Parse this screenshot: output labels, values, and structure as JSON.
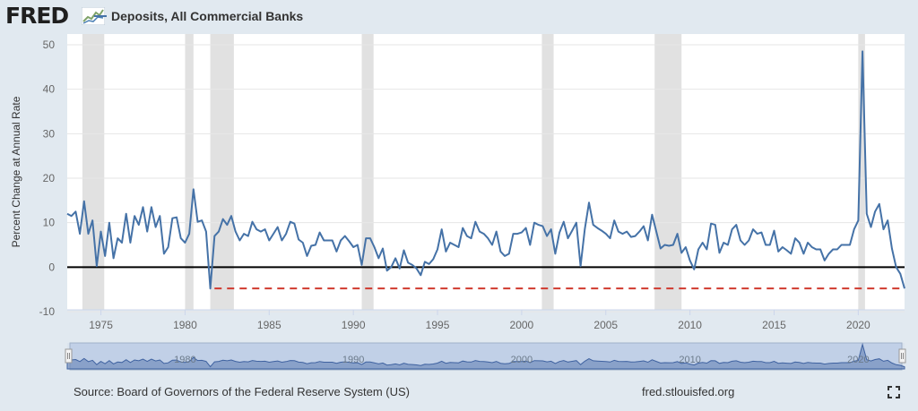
{
  "header": {
    "logo_text": "FRED",
    "logo_icon": "fred-graph-icon"
  },
  "legend": {
    "series_label": "Deposits, All Commercial Banks",
    "series_color": "#4572a7"
  },
  "footer": {
    "source": "Source: Board of Governors of the Federal Reserve System (US)",
    "url": "fred.stlouisfed.org",
    "fullscreen_icon": "fullscreen-icon"
  },
  "navigator": {
    "tick_labels": [
      "1980",
      "1990",
      "2000",
      "2010",
      "2020"
    ],
    "tick_years": [
      1980,
      1990,
      2000,
      2010,
      2020
    ],
    "range_start": 1973.0,
    "range_end": 2022.75
  },
  "chart_data": {
    "type": "line",
    "title": "",
    "xlabel": "",
    "ylabel": "Percent Change at Annual Rate",
    "ylim": [
      -10,
      50
    ],
    "xlim": [
      1973.0,
      2022.75
    ],
    "x_ticks": [
      1975,
      1980,
      1985,
      1990,
      1995,
      2000,
      2005,
      2010,
      2015,
      2020
    ],
    "y_ticks": [
      -10,
      0,
      10,
      20,
      30,
      40,
      50
    ],
    "grid": "horizontal",
    "legend_position": "top-left",
    "recessions": [
      [
        1973.9,
        1975.2
      ],
      [
        1980.0,
        1980.5
      ],
      [
        1981.5,
        1982.9
      ],
      [
        1990.5,
        1991.2
      ],
      [
        2001.2,
        2001.9
      ],
      [
        2007.9,
        2009.5
      ],
      [
        2020.0,
        2020.4
      ]
    ],
    "reference_lines": [
      {
        "y": 0,
        "color": "#000000",
        "style": "solid"
      },
      {
        "y": -4.8,
        "color": "#d03a2f",
        "style": "dashed",
        "x_from": 1981.75
      }
    ],
    "series": [
      {
        "name": "Deposits, All Commercial Banks",
        "color": "#4572a7",
        "x": [
          1973.0,
          1973.25,
          1973.5,
          1973.75,
          1974.0,
          1974.25,
          1974.5,
          1974.75,
          1975.0,
          1975.25,
          1975.5,
          1975.75,
          1976.0,
          1976.25,
          1976.5,
          1976.75,
          1977.0,
          1977.25,
          1977.5,
          1977.75,
          1978.0,
          1978.25,
          1978.5,
          1978.75,
          1979.0,
          1979.25,
          1979.5,
          1979.75,
          1980.0,
          1980.25,
          1980.5,
          1980.75,
          1981.0,
          1981.25,
          1981.5,
          1981.75,
          1982.0,
          1982.25,
          1982.5,
          1982.75,
          1983.0,
          1983.25,
          1983.5,
          1983.75,
          1984.0,
          1984.25,
          1984.5,
          1984.75,
          1985.0,
          1985.25,
          1985.5,
          1985.75,
          1986.0,
          1986.25,
          1986.5,
          1986.75,
          1987.0,
          1987.25,
          1987.5,
          1987.75,
          1988.0,
          1988.25,
          1988.5,
          1988.75,
          1989.0,
          1989.25,
          1989.5,
          1989.75,
          1990.0,
          1990.25,
          1990.5,
          1990.75,
          1991.0,
          1991.25,
          1991.5,
          1991.75,
          1992.0,
          1992.25,
          1992.5,
          1992.75,
          1993.0,
          1993.25,
          1993.5,
          1993.75,
          1994.0,
          1994.25,
          1994.5,
          1994.75,
          1995.0,
          1995.25,
          1995.5,
          1995.75,
          1996.0,
          1996.25,
          1996.5,
          1996.75,
          1997.0,
          1997.25,
          1997.5,
          1997.75,
          1998.0,
          1998.25,
          1998.5,
          1998.75,
          1999.0,
          1999.25,
          1999.5,
          1999.75,
          2000.0,
          2000.25,
          2000.5,
          2000.75,
          2001.0,
          2001.25,
          2001.5,
          2001.75,
          2002.0,
          2002.25,
          2002.5,
          2002.75,
          2003.0,
          2003.25,
          2003.5,
          2003.75,
          2004.0,
          2004.25,
          2004.5,
          2004.75,
          2005.0,
          2005.25,
          2005.5,
          2005.75,
          2006.0,
          2006.25,
          2006.5,
          2006.75,
          2007.0,
          2007.25,
          2007.5,
          2007.75,
          2008.0,
          2008.25,
          2008.5,
          2008.75,
          2009.0,
          2009.25,
          2009.5,
          2009.75,
          2010.0,
          2010.25,
          2010.5,
          2010.75,
          2011.0,
          2011.25,
          2011.5,
          2011.75,
          2012.0,
          2012.25,
          2012.5,
          2012.75,
          2013.0,
          2013.25,
          2013.5,
          2013.75,
          2014.0,
          2014.25,
          2014.5,
          2014.75,
          2015.0,
          2015.25,
          2015.5,
          2015.75,
          2016.0,
          2016.25,
          2016.5,
          2016.75,
          2017.0,
          2017.25,
          2017.5,
          2017.75,
          2018.0,
          2018.25,
          2018.5,
          2018.75,
          2019.0,
          2019.25,
          2019.5,
          2019.75,
          2020.0,
          2020.25,
          2020.5,
          2020.75,
          2021.0,
          2021.25,
          2021.5,
          2021.75,
          2022.0,
          2022.25,
          2022.5,
          2022.75
        ],
        "values": [
          12.0,
          11.5,
          12.5,
          7.5,
          14.8,
          7.5,
          10.5,
          0.2,
          8.0,
          2.5,
          10.0,
          2.0,
          6.5,
          5.5,
          12.0,
          5.5,
          11.5,
          9.5,
          13.5,
          8.0,
          13.5,
          9.0,
          11.5,
          3.0,
          4.5,
          11.0,
          11.2,
          6.5,
          5.5,
          7.5,
          17.5,
          10.2,
          10.5,
          8.0,
          -4.8,
          7.0,
          8.0,
          10.8,
          9.5,
          11.5,
          8.0,
          6.0,
          7.5,
          7.0,
          10.2,
          8.5,
          8.0,
          8.5,
          6.0,
          7.5,
          9.0,
          6.0,
          7.5,
          10.2,
          9.8,
          6.2,
          5.5,
          2.5,
          4.8,
          5.0,
          7.8,
          6.0,
          6.0,
          6.0,
          3.5,
          6.0,
          7.0,
          5.8,
          4.5,
          5.0,
          0.5,
          6.5,
          6.5,
          4.5,
          2.0,
          4.2,
          -0.8,
          0.0,
          2.0,
          -0.3,
          3.8,
          1.0,
          0.5,
          -0.3,
          -1.8,
          1.2,
          0.7,
          1.8,
          4.0,
          8.5,
          3.5,
          5.5,
          5.0,
          4.5,
          8.8,
          7.0,
          6.5,
          10.2,
          8.0,
          7.5,
          6.5,
          5.0,
          8.0,
          3.5,
          2.5,
          3.0,
          7.5,
          7.5,
          7.8,
          8.8,
          5.0,
          10.0,
          9.5,
          9.2,
          7.0,
          8.5,
          3.0,
          7.8,
          10.2,
          6.5,
          8.2,
          10.0,
          0.2,
          8.5,
          14.5,
          9.5,
          8.8,
          8.2,
          7.5,
          6.5,
          10.5,
          8.0,
          7.5,
          8.0,
          6.8,
          7.0,
          8.0,
          9.2,
          6.0,
          11.8,
          8.0,
          4.2,
          5.0,
          4.8,
          5.0,
          7.5,
          3.2,
          4.5,
          1.5,
          -0.5,
          4.0,
          5.5,
          4.0,
          9.8,
          9.5,
          3.2,
          5.5,
          5.0,
          8.5,
          9.5,
          6.0,
          5.0,
          6.0,
          8.5,
          7.5,
          7.8,
          5.0,
          5.0,
          8.2,
          3.5,
          4.5,
          3.8,
          3.0,
          6.5,
          5.5,
          3.0,
          5.5,
          4.5,
          4.0,
          4.0,
          1.5,
          3.0,
          4.0,
          4.0,
          5.0,
          5.0,
          5.0,
          8.5,
          10.5,
          48.5,
          12.0,
          9.0,
          12.5,
          14.2,
          8.5,
          10.5,
          4.2,
          0.0,
          -1.5,
          -4.8
        ]
      }
    ]
  }
}
